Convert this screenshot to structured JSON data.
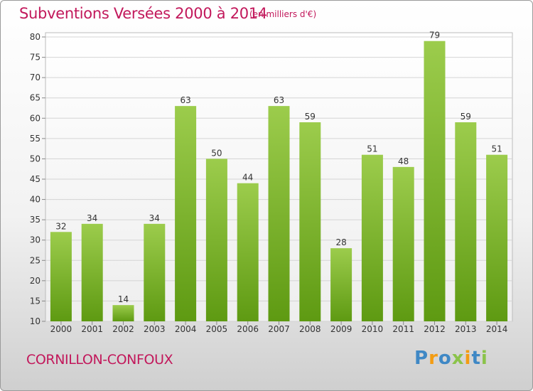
{
  "header": {
    "title": "Subventions Versées 2000 à 2014",
    "subtitle": "(en milliers d'€)"
  },
  "footer": {
    "town": "CORNILLON-CONFOUX",
    "logo": "Proxiti"
  },
  "colors": {
    "accent": "#c2185b",
    "bar_top": "#9ccc4c",
    "bar_bottom": "#5e9a12",
    "logo_letters": [
      "#3f88c5",
      "#f39c12",
      "#3f88c5",
      "#8bc34a",
      "#f39c12",
      "#3f88c5",
      "#8bc34a"
    ]
  },
  "chart_data": {
    "type": "bar",
    "categories": [
      "2000",
      "2001",
      "2002",
      "2003",
      "2004",
      "2005",
      "2006",
      "2007",
      "2008",
      "2009",
      "2010",
      "2011",
      "2012",
      "2013",
      "2014"
    ],
    "values": [
      32,
      34,
      14,
      34,
      63,
      50,
      44,
      63,
      59,
      28,
      51,
      48,
      79,
      59,
      51
    ],
    "title": "Subventions Versées 2000 à 2014",
    "ylim": [
      10,
      80
    ],
    "yticks": [
      10,
      15,
      20,
      25,
      30,
      35,
      40,
      45,
      50,
      55,
      60,
      65,
      70,
      75,
      80
    ],
    "grid": true,
    "data_labels": true
  }
}
